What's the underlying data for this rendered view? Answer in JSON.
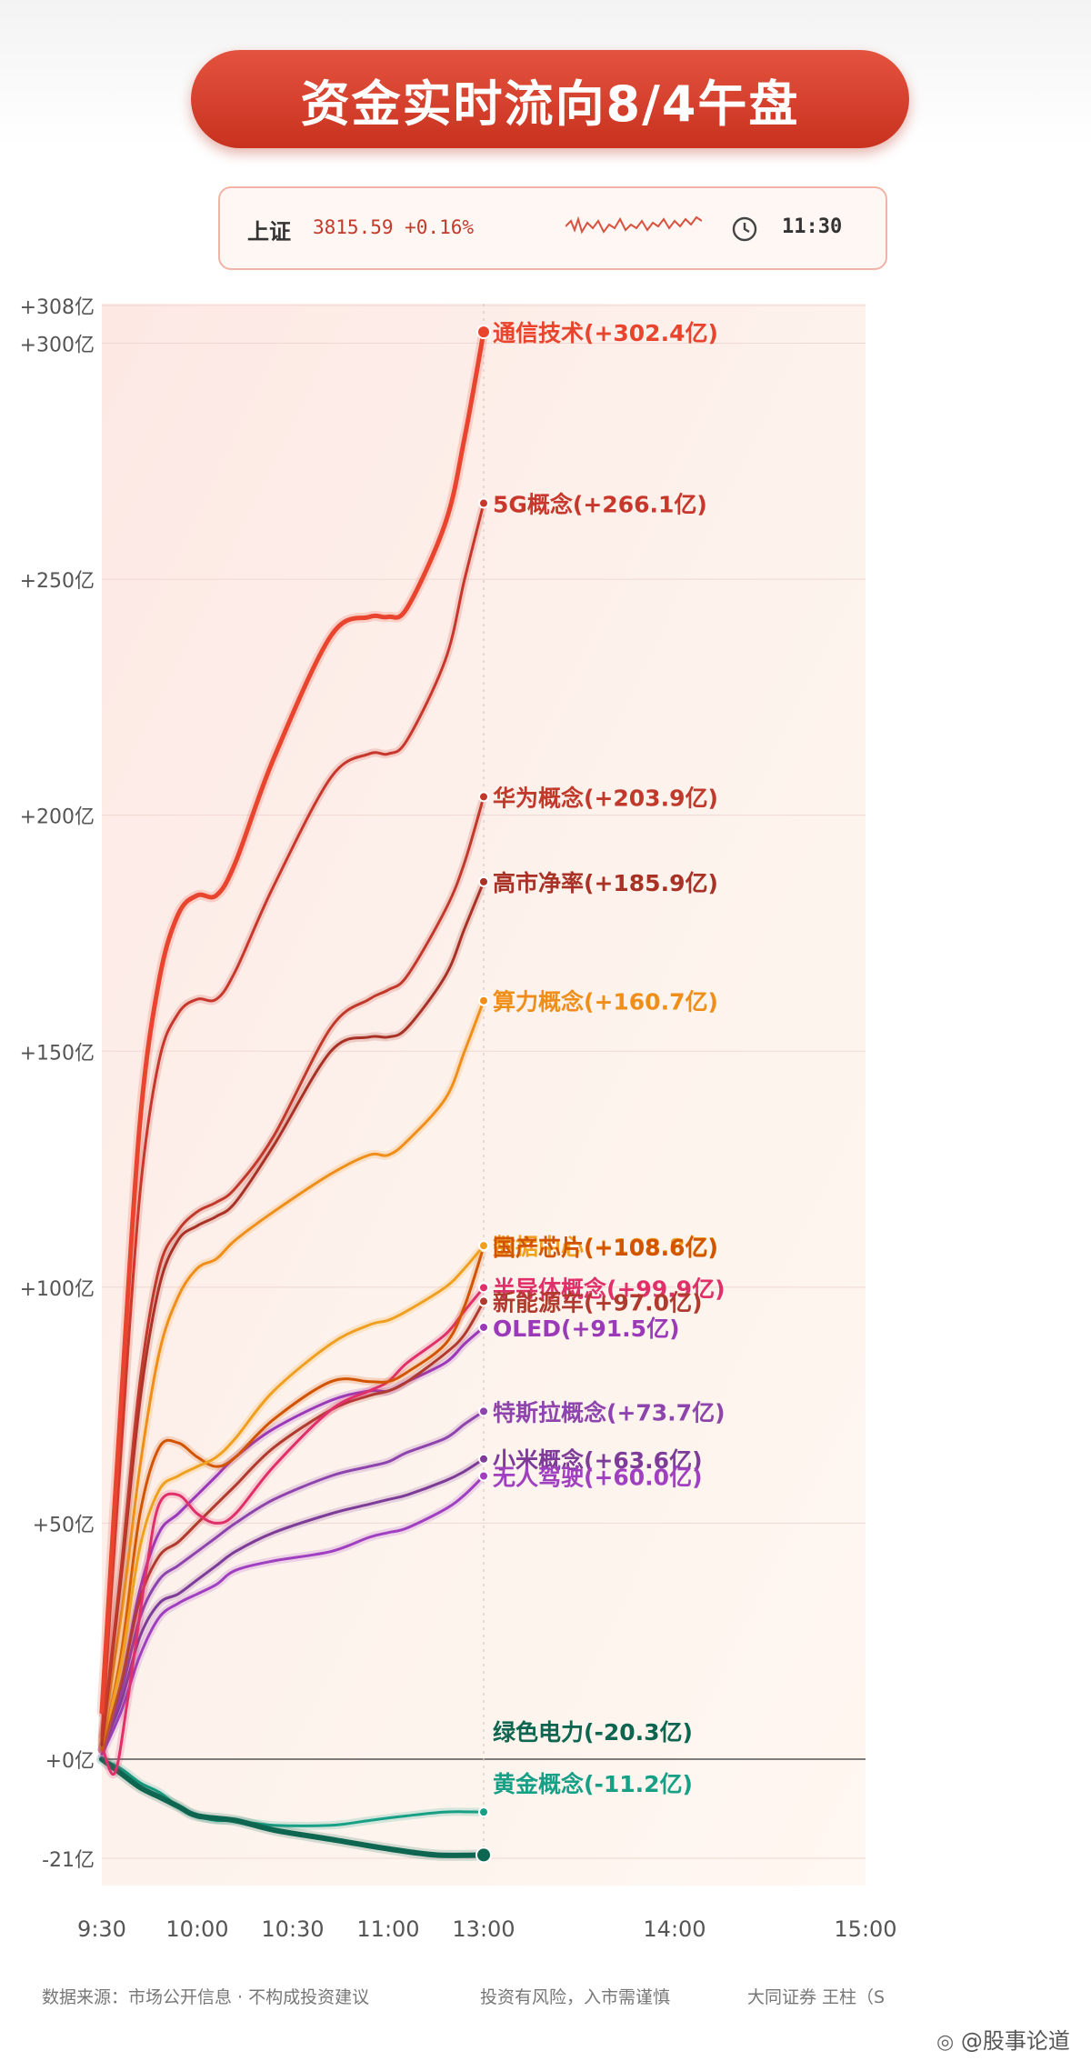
{
  "header": {
    "title": "资金实时流向8/4午盘"
  },
  "ticker": {
    "name": "上证",
    "value": "3815.59 +0.16%",
    "time": "11:30"
  },
  "chart_data": {
    "type": "line",
    "ylim": [
      -21,
      308
    ],
    "y_ticks": [
      {
        "v": 308,
        "label": "+308亿"
      },
      {
        "v": 300,
        "label": "+300亿"
      },
      {
        "v": 250,
        "label": "+250亿"
      },
      {
        "v": 200,
        "label": "+200亿"
      },
      {
        "v": 150,
        "label": "+150亿"
      },
      {
        "v": 100,
        "label": "+100亿"
      },
      {
        "v": 50,
        "label": "+50亿"
      },
      {
        "v": 0,
        "label": "+0亿"
      },
      {
        "v": -21,
        "label": "-21亿"
      }
    ],
    "x_ticks": [
      {
        "t": 0,
        "label": "9:30"
      },
      {
        "t": 30,
        "label": "10:00"
      },
      {
        "t": 60,
        "label": "10:30"
      },
      {
        "t": 90,
        "label": "11:00"
      },
      {
        "t": 120,
        "label": "13:00"
      },
      {
        "t": 180,
        "label": "14:00"
      },
      {
        "t": 240,
        "label": "15:00"
      }
    ],
    "x_unit": "trading minutes since 9:30",
    "series": [
      {
        "name": "通信技术",
        "value_label": "(+302.4亿)",
        "color": "#e8442e",
        "width": 5,
        "label_v": 302.4,
        "points": [
          [
            0,
            10
          ],
          [
            6,
            75
          ],
          [
            12,
            135
          ],
          [
            18,
            165
          ],
          [
            24,
            179
          ],
          [
            30,
            183
          ],
          [
            36,
            183
          ],
          [
            42,
            190
          ],
          [
            54,
            212
          ],
          [
            72,
            238
          ],
          [
            84,
            242
          ],
          [
            90,
            242
          ],
          [
            96,
            244
          ],
          [
            108,
            262
          ],
          [
            114,
            280
          ],
          [
            120,
            302.4
          ]
        ]
      },
      {
        "name": "5G概念",
        "value_label": "(+266.1亿)",
        "color": "#c8372b",
        "width": 3,
        "label_v": 266.1,
        "points": [
          [
            0,
            5
          ],
          [
            6,
            65
          ],
          [
            12,
            120
          ],
          [
            18,
            148
          ],
          [
            24,
            158
          ],
          [
            30,
            161
          ],
          [
            36,
            161
          ],
          [
            42,
            167
          ],
          [
            54,
            185
          ],
          [
            72,
            208
          ],
          [
            84,
            213
          ],
          [
            90,
            213
          ],
          [
            96,
            216
          ],
          [
            108,
            233
          ],
          [
            114,
            250
          ],
          [
            120,
            266.1
          ]
        ]
      },
      {
        "name": "华为概念",
        "value_label": "(+203.9亿)",
        "color": "#c0392b",
        "width": 3,
        "label_v": 203.9,
        "points": [
          [
            0,
            4
          ],
          [
            6,
            40
          ],
          [
            12,
            80
          ],
          [
            18,
            104
          ],
          [
            24,
            112
          ],
          [
            30,
            116
          ],
          [
            36,
            118
          ],
          [
            42,
            121
          ],
          [
            54,
            132
          ],
          [
            72,
            155
          ],
          [
            84,
            161
          ],
          [
            90,
            163
          ],
          [
            96,
            166
          ],
          [
            108,
            180
          ],
          [
            114,
            190
          ],
          [
            120,
            203.9
          ]
        ]
      },
      {
        "name": "高市净率",
        "value_label": "(+185.9亿)",
        "color": "#a93226",
        "width": 3,
        "label_v": 185.9,
        "points": [
          [
            0,
            3
          ],
          [
            6,
            38
          ],
          [
            12,
            76
          ],
          [
            18,
            100
          ],
          [
            24,
            110
          ],
          [
            30,
            113
          ],
          [
            36,
            115
          ],
          [
            42,
            118
          ],
          [
            54,
            130
          ],
          [
            72,
            150
          ],
          [
            84,
            153
          ],
          [
            90,
            153
          ],
          [
            96,
            155
          ],
          [
            108,
            166
          ],
          [
            114,
            176
          ],
          [
            120,
            185.9
          ]
        ]
      },
      {
        "name": "算力概念",
        "value_label": "(+160.7亿)",
        "color": "#ef8f1a",
        "width": 3,
        "label_v": 160.7,
        "points": [
          [
            0,
            4
          ],
          [
            6,
            30
          ],
          [
            12,
            62
          ],
          [
            18,
            86
          ],
          [
            24,
            98
          ],
          [
            30,
            104
          ],
          [
            36,
            106
          ],
          [
            42,
            110
          ],
          [
            54,
            116
          ],
          [
            72,
            124
          ],
          [
            84,
            128
          ],
          [
            90,
            128
          ],
          [
            96,
            131
          ],
          [
            108,
            140
          ],
          [
            114,
            150
          ],
          [
            120,
            160.7
          ]
        ]
      },
      {
        "name": "数据中心",
        "value_label": "(+108.8亿)",
        "color": "#f0a020",
        "width": 3,
        "label_v": 108.8,
        "points": [
          [
            0,
            3
          ],
          [
            6,
            20
          ],
          [
            12,
            45
          ],
          [
            18,
            57
          ],
          [
            24,
            60
          ],
          [
            30,
            62
          ],
          [
            36,
            64
          ],
          [
            42,
            68
          ],
          [
            54,
            78
          ],
          [
            72,
            88
          ],
          [
            84,
            92
          ],
          [
            90,
            93
          ],
          [
            96,
            95
          ],
          [
            108,
            100
          ],
          [
            114,
            104
          ],
          [
            120,
            108.8
          ]
        ]
      },
      {
        "name": "国产芯片",
        "value_label": "(+108.6亿)",
        "color": "#d35400",
        "width": 3,
        "label_v": 108.6,
        "points": [
          [
            0,
            2
          ],
          [
            6,
            22
          ],
          [
            12,
            52
          ],
          [
            18,
            66
          ],
          [
            24,
            67
          ],
          [
            30,
            64
          ],
          [
            36,
            62
          ],
          [
            42,
            64
          ],
          [
            54,
            72
          ],
          [
            72,
            80
          ],
          [
            84,
            80
          ],
          [
            90,
            80
          ],
          [
            96,
            82
          ],
          [
            108,
            88
          ],
          [
            114,
            96
          ],
          [
            120,
            108.6
          ]
        ]
      },
      {
        "name": "半导体概念",
        "value_label": "(+99.9亿)",
        "color": "#e0306a",
        "width": 3,
        "label_v": 99.9,
        "points": [
          [
            0,
            3
          ],
          [
            4,
            -3
          ],
          [
            8,
            12
          ],
          [
            14,
            40
          ],
          [
            18,
            54
          ],
          [
            24,
            56
          ],
          [
            30,
            52
          ],
          [
            36,
            50
          ],
          [
            42,
            52
          ],
          [
            54,
            62
          ],
          [
            72,
            74
          ],
          [
            84,
            78
          ],
          [
            90,
            80
          ],
          [
            96,
            84
          ],
          [
            108,
            90
          ],
          [
            114,
            95
          ],
          [
            120,
            99.9
          ]
        ]
      },
      {
        "name": "新能源车",
        "value_label": "(+97.0亿)",
        "color": "#b03a2e",
        "width": 3,
        "label_v": 97.0,
        "points": [
          [
            0,
            2
          ],
          [
            6,
            16
          ],
          [
            12,
            34
          ],
          [
            18,
            43
          ],
          [
            24,
            46
          ],
          [
            30,
            50
          ],
          [
            36,
            54
          ],
          [
            42,
            58
          ],
          [
            54,
            66
          ],
          [
            72,
            74
          ],
          [
            84,
            77
          ],
          [
            90,
            78
          ],
          [
            96,
            80
          ],
          [
            108,
            86
          ],
          [
            114,
            90
          ],
          [
            120,
            97.0
          ]
        ]
      },
      {
        "name": "OLED",
        "value_label": "(+91.5亿)",
        "color": "#9b3ab8",
        "width": 3,
        "label_v": 91.5,
        "points": [
          [
            0,
            2
          ],
          [
            6,
            16
          ],
          [
            12,
            36
          ],
          [
            18,
            48
          ],
          [
            24,
            52
          ],
          [
            30,
            56
          ],
          [
            36,
            60
          ],
          [
            42,
            64
          ],
          [
            54,
            70
          ],
          [
            72,
            76
          ],
          [
            84,
            78
          ],
          [
            90,
            78
          ],
          [
            96,
            80
          ],
          [
            108,
            84
          ],
          [
            114,
            88
          ],
          [
            120,
            91.5
          ]
        ]
      },
      {
        "name": "特斯拉概念",
        "value_label": "(+73.7亿)",
        "color": "#8e44ad",
        "width": 3,
        "label_v": 73.7,
        "points": [
          [
            0,
            2
          ],
          [
            6,
            14
          ],
          [
            12,
            30
          ],
          [
            18,
            38
          ],
          [
            24,
            41
          ],
          [
            30,
            44
          ],
          [
            36,
            47
          ],
          [
            42,
            50
          ],
          [
            54,
            55
          ],
          [
            72,
            60
          ],
          [
            84,
            62
          ],
          [
            90,
            63
          ],
          [
            96,
            65
          ],
          [
            108,
            68
          ],
          [
            114,
            71
          ],
          [
            120,
            73.7
          ]
        ]
      },
      {
        "name": "小米概念",
        "value_label": "(+63.6亿)",
        "color": "#7d3c98",
        "width": 3,
        "label_v": 63.6,
        "points": [
          [
            0,
            2
          ],
          [
            6,
            12
          ],
          [
            12,
            26
          ],
          [
            18,
            33
          ],
          [
            24,
            35
          ],
          [
            30,
            38
          ],
          [
            36,
            41
          ],
          [
            42,
            44
          ],
          [
            54,
            48
          ],
          [
            72,
            52
          ],
          [
            84,
            54
          ],
          [
            90,
            55
          ],
          [
            96,
            56
          ],
          [
            108,
            59
          ],
          [
            114,
            61
          ],
          [
            120,
            63.6
          ]
        ]
      },
      {
        "name": "无人驾驶",
        "value_label": "(+60.0亿)",
        "color": "#a040c0",
        "width": 3,
        "label_v": 60.0,
        "points": [
          [
            0,
            1
          ],
          [
            6,
            10
          ],
          [
            12,
            22
          ],
          [
            18,
            30
          ],
          [
            24,
            33
          ],
          [
            30,
            35
          ],
          [
            36,
            37
          ],
          [
            42,
            40
          ],
          [
            54,
            42
          ],
          [
            72,
            44
          ],
          [
            84,
            47
          ],
          [
            90,
            48
          ],
          [
            96,
            49
          ],
          [
            108,
            53
          ],
          [
            114,
            56
          ],
          [
            120,
            60.0
          ]
        ]
      },
      {
        "name": "绿色电力",
        "value_label": "(-20.3亿)",
        "color": "#0e6650",
        "width": 6,
        "label_v": 6,
        "points": [
          [
            0,
            0
          ],
          [
            6,
            -3
          ],
          [
            12,
            -6
          ],
          [
            18,
            -8
          ],
          [
            24,
            -10
          ],
          [
            30,
            -12
          ],
          [
            42,
            -13
          ],
          [
            54,
            -15
          ],
          [
            72,
            -17
          ],
          [
            90,
            -19
          ],
          [
            105,
            -20.3
          ],
          [
            120,
            -20.3
          ]
        ]
      },
      {
        "name": "黄金概念",
        "value_label": "(-11.2亿)",
        "color": "#17a086",
        "width": 3,
        "label_v": -5,
        "points": [
          [
            0,
            0
          ],
          [
            6,
            -2
          ],
          [
            12,
            -5
          ],
          [
            18,
            -7
          ],
          [
            24,
            -10
          ],
          [
            30,
            -12
          ],
          [
            36,
            -13
          ],
          [
            42,
            -13
          ],
          [
            54,
            -14
          ],
          [
            72,
            -14
          ],
          [
            84,
            -13
          ],
          [
            96,
            -12
          ],
          [
            108,
            -11.2
          ],
          [
            120,
            -11.2
          ]
        ]
      }
    ]
  },
  "footer": {
    "source": "数据来源：市场公开信息 · 不构成投资建议",
    "risk": "投资有风险，入市需谨慎",
    "author": "大同证券 王柱（S",
    "watermark": "@股事论道"
  }
}
